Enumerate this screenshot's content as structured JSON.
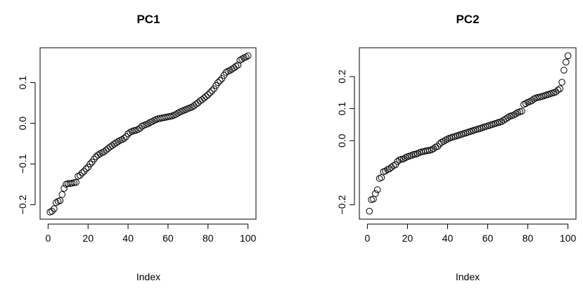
{
  "chart_data": [
    {
      "type": "scatter",
      "title": "PC1",
      "xlabel": "Index",
      "ylabel": "",
      "xlim": [
        0,
        100
      ],
      "ylim": [
        -0.22,
        0.17
      ],
      "xticks": [
        0,
        20,
        40,
        60,
        80,
        100
      ],
      "xtick_labels": [
        "0",
        "20",
        "40",
        "60",
        "80",
        "100"
      ],
      "yticks": [
        -0.2,
        -0.1,
        0.0,
        0.1
      ],
      "ytick_labels": [
        "-0.2",
        "-0.1",
        "0.0",
        "0.1"
      ],
      "grid": false,
      "x": [
        1,
        2,
        3,
        4,
        5,
        6,
        7,
        8,
        9,
        10,
        11,
        12,
        13,
        14,
        15,
        16,
        17,
        18,
        19,
        20,
        21,
        22,
        23,
        24,
        25,
        26,
        27,
        28,
        29,
        30,
        31,
        32,
        33,
        34,
        35,
        36,
        37,
        38,
        39,
        40,
        41,
        42,
        43,
        44,
        45,
        46,
        47,
        48,
        49,
        50,
        51,
        52,
        53,
        54,
        55,
        56,
        57,
        58,
        59,
        60,
        61,
        62,
        63,
        64,
        65,
        66,
        67,
        68,
        69,
        70,
        71,
        72,
        73,
        74,
        75,
        76,
        77,
        78,
        79,
        80,
        81,
        82,
        83,
        84,
        85,
        86,
        87,
        88,
        89,
        90,
        91,
        92,
        93,
        94,
        95,
        96,
        97,
        98,
        99,
        100
      ],
      "y": [
        -0.218,
        -0.216,
        -0.21,
        -0.195,
        -0.192,
        -0.19,
        -0.175,
        -0.16,
        -0.15,
        -0.148,
        -0.148,
        -0.147,
        -0.146,
        -0.145,
        -0.13,
        -0.128,
        -0.122,
        -0.118,
        -0.112,
        -0.108,
        -0.1,
        -0.095,
        -0.088,
        -0.082,
        -0.078,
        -0.075,
        -0.072,
        -0.07,
        -0.066,
        -0.062,
        -0.058,
        -0.055,
        -0.051,
        -0.048,
        -0.045,
        -0.042,
        -0.04,
        -0.037,
        -0.033,
        -0.026,
        -0.022,
        -0.02,
        -0.018,
        -0.017,
        -0.015,
        -0.012,
        -0.007,
        -0.005,
        -0.003,
        -0.001,
        0.002,
        0.004,
        0.007,
        0.009,
        0.011,
        0.012,
        0.013,
        0.014,
        0.015,
        0.016,
        0.017,
        0.018,
        0.02,
        0.022,
        0.025,
        0.028,
        0.03,
        0.032,
        0.034,
        0.036,
        0.038,
        0.04,
        0.043,
        0.047,
        0.05,
        0.055,
        0.058,
        0.062,
        0.066,
        0.07,
        0.075,
        0.08,
        0.085,
        0.093,
        0.1,
        0.105,
        0.11,
        0.118,
        0.125,
        0.128,
        0.13,
        0.133,
        0.136,
        0.14,
        0.143,
        0.155,
        0.158,
        0.161,
        0.163,
        0.166
      ]
    },
    {
      "type": "scatter",
      "title": "PC2",
      "xlabel": "Index",
      "ylabel": "",
      "xlim": [
        0,
        100
      ],
      "ylim": [
        -0.225,
        0.27
      ],
      "xticks": [
        0,
        20,
        40,
        60,
        80,
        100
      ],
      "xtick_labels": [
        "0",
        "20",
        "40",
        "60",
        "80",
        "100"
      ],
      "yticks": [
        -0.2,
        0.0,
        0.1,
        0.2
      ],
      "ytick_labels": [
        "-0.2",
        "0.0",
        "0.1",
        "0.2"
      ],
      "grid": false,
      "x": [
        1,
        2,
        3,
        4,
        5,
        6,
        7,
        8,
        9,
        10,
        11,
        12,
        13,
        14,
        15,
        16,
        17,
        18,
        19,
        20,
        21,
        22,
        23,
        24,
        25,
        26,
        27,
        28,
        29,
        30,
        31,
        32,
        33,
        34,
        35,
        36,
        37,
        38,
        39,
        40,
        41,
        42,
        43,
        44,
        45,
        46,
        47,
        48,
        49,
        50,
        51,
        52,
        53,
        54,
        55,
        56,
        57,
        58,
        59,
        60,
        61,
        62,
        63,
        64,
        65,
        66,
        67,
        68,
        69,
        70,
        71,
        72,
        73,
        74,
        75,
        76,
        77,
        78,
        79,
        80,
        81,
        82,
        83,
        84,
        85,
        86,
        87,
        88,
        89,
        90,
        91,
        92,
        93,
        94,
        95,
        96,
        97,
        98,
        99,
        100
      ],
      "y": [
        -0.22,
        -0.184,
        -0.182,
        -0.165,
        -0.153,
        -0.118,
        -0.115,
        -0.097,
        -0.095,
        -0.09,
        -0.088,
        -0.083,
        -0.078,
        -0.075,
        -0.065,
        -0.06,
        -0.058,
        -0.057,
        -0.053,
        -0.05,
        -0.048,
        -0.046,
        -0.043,
        -0.042,
        -0.04,
        -0.037,
        -0.035,
        -0.034,
        -0.032,
        -0.031,
        -0.03,
        -0.028,
        -0.025,
        -0.02,
        -0.018,
        -0.01,
        -0.005,
        -0.002,
        0.002,
        0.005,
        0.008,
        0.01,
        0.012,
        0.014,
        0.016,
        0.018,
        0.02,
        0.022,
        0.024,
        0.026,
        0.028,
        0.03,
        0.032,
        0.034,
        0.036,
        0.038,
        0.04,
        0.042,
        0.044,
        0.046,
        0.048,
        0.05,
        0.052,
        0.054,
        0.056,
        0.058,
        0.06,
        0.064,
        0.068,
        0.072,
        0.076,
        0.078,
        0.08,
        0.084,
        0.088,
        0.09,
        0.092,
        0.113,
        0.116,
        0.12,
        0.122,
        0.125,
        0.13,
        0.133,
        0.135,
        0.136,
        0.138,
        0.14,
        0.142,
        0.144,
        0.146,
        0.148,
        0.15,
        0.152,
        0.158,
        0.162,
        0.182,
        0.22,
        0.245,
        0.265
      ]
    }
  ]
}
